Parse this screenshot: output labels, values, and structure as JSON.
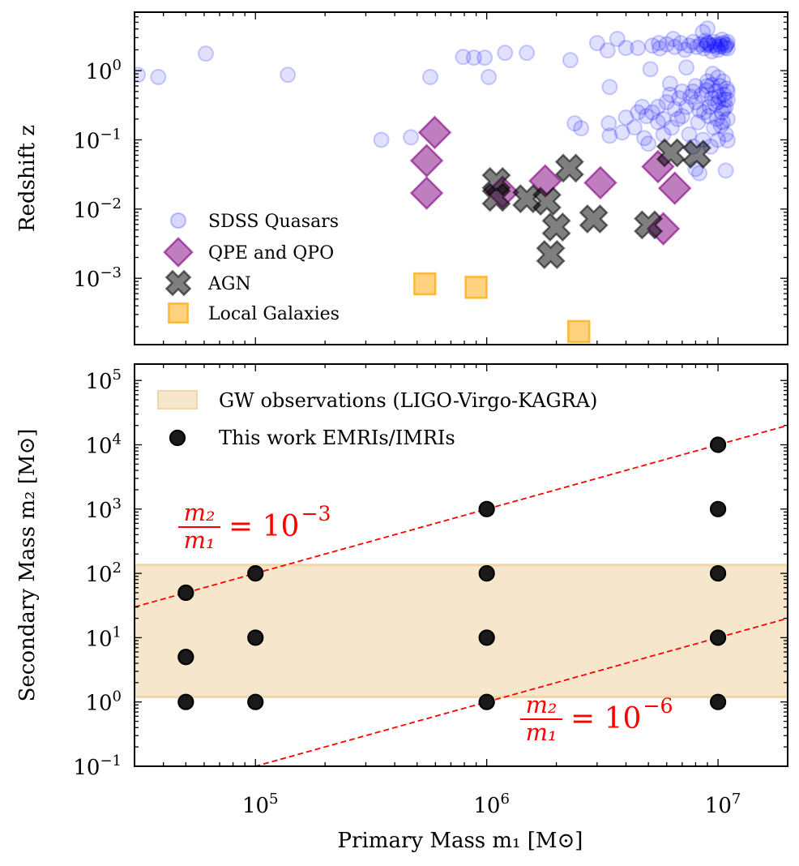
{
  "chart_data": [
    {
      "panel": "top",
      "type": "scatter",
      "xscale": "log",
      "yscale": "log",
      "xlim": [
        30000.0,
        20000000.0
      ],
      "ylim": [
        0.00011,
        7
      ],
      "ylabel": "Redshift z",
      "y_ticks_exp": [
        0,
        -1,
        -2,
        -3
      ],
      "x_tick_labels_shown": false,
      "legend_placement": "lower-left",
      "series": [
        {
          "name": "SDSS Quasars",
          "marker": "circle",
          "color": "#0000ff",
          "alpha": 0.12,
          "points": [
            [
              31000.0,
              0.87
            ],
            [
              38000.0,
              0.81
            ],
            [
              61000.0,
              1.76
            ],
            [
              138000.0,
              0.87
            ],
            [
              350000.0,
              0.1
            ],
            [
              470000.0,
              0.109
            ],
            [
              570000.0,
              0.81
            ],
            [
              790000.0,
              1.58
            ],
            [
              880000.0,
              1.54
            ],
            [
              980000.0,
              1.54
            ],
            [
              1020000.0,
              0.81
            ],
            [
              1200000.0,
              1.81
            ],
            [
              1490000.0,
              1.81
            ],
            [
              2300000.0,
              1.42
            ],
            [
              2400000.0,
              0.173
            ],
            [
              2560000.0,
              0.147
            ],
            [
              3000000.0,
              2.5
            ],
            [
              3670000.0,
              2.87
            ],
            [
              3330000.0,
              1.96
            ],
            [
              4000000.0,
              2.13
            ],
            [
              4500000.0,
              2.13
            ],
            [
              5550000.0,
              2.5
            ],
            [
              6400000.0,
              2.87
            ],
            [
              9000000.0,
              4.07
            ],
            [
              8600000.0,
              3.6
            ],
            [
              5100000.0,
              1.05
            ],
            [
              3400000.0,
              0.58
            ],
            [
              6200000.0,
              0.65
            ],
            [
              7300000.0,
              1.11
            ],
            [
              3370000.0,
              0.173
            ],
            [
              3400000.0,
              0.115
            ],
            [
              4000000.0,
              0.21
            ],
            [
              4500000.0,
              0.25
            ],
            [
              3850000.0,
              0.128
            ],
            [
              4350000.0,
              0.151
            ],
            [
              4800000.0,
              0.106
            ],
            [
              5000000.0,
              0.088
            ],
            [
              10800000.0,
              0.036
            ],
            [
              8300000.0,
              0.033
            ],
            [
              11000000.0,
              0.098
            ],
            [
              8000000.0,
              0.038
            ],
            [
              5200000.0,
              2.3
            ],
            [
              5600000.0,
              2.1
            ],
            [
              6000000.0,
              2.4
            ],
            [
              6500000.0,
              2.2
            ],
            [
              6900000.0,
              2.5
            ],
            [
              7200000.0,
              2.0
            ],
            [
              7500000.0,
              2.3
            ],
            [
              7800000.0,
              2.6
            ],
            [
              8100000.0,
              2.2
            ],
            [
              8400000.0,
              2.4
            ],
            [
              8700000.0,
              2.1
            ],
            [
              9000000.0,
              2.5
            ],
            [
              9300000.0,
              2.3
            ],
            [
              9600000.0,
              2.6
            ],
            [
              9900000.0,
              2.2
            ],
            [
              10200000.0,
              2.4
            ],
            [
              10500000.0,
              2.5
            ],
            [
              10800000.0,
              2.3
            ],
            [
              11000000.0,
              2.1
            ],
            [
              11000000.0,
              2.6
            ],
            [
              10000000.0,
              2.0
            ],
            [
              9400000.0,
              1.9
            ],
            [
              8800000.0,
              2.7
            ],
            [
              10400000.0,
              2.8
            ],
            [
              9700000.0,
              2.35
            ],
            [
              8900000.0,
              2.35
            ],
            [
              10700000.0,
              2.15
            ],
            [
              10300000.0,
              2.25
            ],
            [
              9100000.0,
              2.45
            ],
            [
              10900000.0,
              2.4
            ],
            [
              5200000.0,
              0.25
            ],
            [
              5500000.0,
              0.3
            ],
            [
              5800000.0,
              0.2
            ],
            [
              6000000.0,
              0.35
            ],
            [
              6300000.0,
              0.15
            ],
            [
              6500000.0,
              0.28
            ],
            [
              6800000.0,
              0.4
            ],
            [
              7000000.0,
              0.22
            ],
            [
              7300000.0,
              0.3
            ],
            [
              7500000.0,
              0.12
            ],
            [
              7800000.0,
              0.5
            ],
            [
              8000000.0,
              0.35
            ],
            [
              8200000.0,
              0.18
            ],
            [
              8500000.0,
              0.45
            ],
            [
              8700000.0,
              0.25
            ],
            [
              9000000.0,
              0.6
            ],
            [
              9200000.0,
              0.3
            ],
            [
              9400000.0,
              0.4
            ],
            [
              9600000.0,
              0.15
            ],
            [
              9800000.0,
              0.5
            ],
            [
              10000000.0,
              0.35
            ],
            [
              10200000.0,
              0.6
            ],
            [
              10400000.0,
              0.25
            ],
            [
              10600000.0,
              0.45
            ],
            [
              10800000.0,
              0.3
            ],
            [
              11000000.0,
              0.5
            ],
            [
              11000000.0,
              0.2
            ],
            [
              10500000.0,
              0.7
            ],
            [
              10000000.0,
              0.8
            ],
            [
              9500000.0,
              0.9
            ],
            [
              9000000.0,
              0.7
            ],
            [
              8000000.0,
              0.6
            ],
            [
              7000000.0,
              0.5
            ],
            [
              10800000.0,
              0.12
            ],
            [
              10000000.0,
              0.1
            ],
            [
              9300000.0,
              0.08
            ],
            [
              8600000.0,
              0.1
            ],
            [
              7800000.0,
              0.08
            ],
            [
              9900000.0,
              0.2
            ],
            [
              10700000.0,
              0.38
            ],
            [
              6200000.0,
              0.45
            ],
            [
              5500000.0,
              0.18
            ],
            [
              4900000.0,
              0.22
            ],
            [
              4700000.0,
              0.3
            ],
            [
              5800000.0,
              0.12
            ],
            [
              10300000.0,
              0.16
            ],
            [
              9100000.0,
              0.22
            ],
            [
              8300000.0,
              0.27
            ],
            [
              7600000.0,
              0.42
            ],
            [
              6700000.0,
              0.2
            ],
            [
              10900000.0,
              0.55
            ],
            [
              10100000.0,
              0.42
            ],
            [
              9700000.0,
              0.33
            ],
            [
              10600000.0,
              0.28
            ],
            [
              11000000.0,
              0.38
            ],
            [
              8900000.0,
              0.52
            ],
            [
              9400000.0,
              0.62
            ],
            [
              10500000.0,
              0.18
            ]
          ]
        },
        {
          "name": "QPE and QPO",
          "marker": "diamond",
          "color": "#800080",
          "alpha": 0.5,
          "points": [
            [
              596000.0,
              0.128
            ],
            [
              550000.0,
              0.05
            ],
            [
              550000.0,
              0.017
            ],
            [
              1170000.0,
              0.0175
            ],
            [
              1790000.0,
              0.0255
            ],
            [
              3100000.0,
              0.024
            ],
            [
              5500000.0,
              0.041
            ],
            [
              6500000.0,
              0.02
            ],
            [
              5800000.0,
              0.0052
            ]
          ]
        },
        {
          "name": "AGN",
          "marker": "X",
          "color": "#000000",
          "alpha": 0.5,
          "points": [
            [
              1100000.0,
              0.025
            ],
            [
              1100000.0,
              0.0148
            ],
            [
              1490000.0,
              0.0141
            ],
            [
              1820000.0,
              0.013
            ],
            [
              2280000.0,
              0.039
            ],
            [
              2000000.0,
              0.0055
            ],
            [
              1890000.0,
              0.0022
            ],
            [
              2900000.0,
              0.0072
            ],
            [
              5000000.0,
              0.0059
            ],
            [
              6250000.0,
              0.065
            ],
            [
              8100000.0,
              0.062
            ]
          ]
        },
        {
          "name": "Local Galaxies",
          "marker": "square",
          "color": "#ffa500",
          "alpha": 0.5,
          "points": [
            [
              540000.0,
              0.00083
            ],
            [
              900000.0,
              0.00074
            ],
            [
              2500000.0,
              0.00017
            ]
          ]
        }
      ]
    },
    {
      "panel": "bottom",
      "type": "scatter",
      "xscale": "log",
      "yscale": "log",
      "xlim": [
        30000.0,
        20000000.0
      ],
      "ylim": [
        0.1,
        180000.0
      ],
      "xlabel": "Primary Mass m₁ [M⊙]",
      "ylabel": "Secondary Mass m₂ [M⊙]",
      "x_ticks_exp": [
        5,
        6,
        7
      ],
      "y_ticks_exp": [
        5,
        4,
        3,
        2,
        1,
        0,
        -1
      ],
      "legend_placement": "top-left",
      "band": {
        "name": "GW observations (LIGO-Virgo-KAGRA)",
        "y_range": [
          1.2,
          135
        ],
        "color": "#f5e6cc",
        "edge": "#f0d6a8"
      },
      "lines": [
        {
          "ratio": 0.001,
          "color": "#ff0000",
          "style": "dashed",
          "label": {
            "num": "m₂",
            "den": "m₁",
            "rhs": "= 10",
            "exp": "−3"
          }
        },
        {
          "ratio": 1e-06,
          "color": "#ff0000",
          "style": "dashed",
          "label": {
            "num": "m₂",
            "den": "m₁",
            "rhs": "= 10",
            "exp": "−6"
          }
        }
      ],
      "series": [
        {
          "name": "This work EMRIs/IMRIs",
          "marker": "circle",
          "color": "#1a1a1a",
          "points": [
            [
              50000.0,
              1
            ],
            [
              50000.0,
              5
            ],
            [
              50000.0,
              50
            ],
            [
              100000.0,
              1
            ],
            [
              100000.0,
              10
            ],
            [
              100000.0,
              100
            ],
            [
              1000000.0,
              1
            ],
            [
              1000000.0,
              10
            ],
            [
              1000000.0,
              100
            ],
            [
              1000000.0,
              1000
            ],
            [
              10000000.0,
              1
            ],
            [
              10000000.0,
              10
            ],
            [
              10000000.0,
              100
            ],
            [
              10000000.0,
              1000
            ],
            [
              10000000.0,
              10000
            ]
          ]
        }
      ]
    }
  ]
}
